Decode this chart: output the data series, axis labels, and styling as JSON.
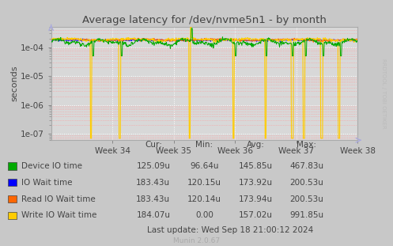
{
  "title": "Average latency for /dev/nvme5n1 - by month",
  "ylabel": "seconds",
  "xlabel_ticks": [
    "Week 34",
    "Week 35",
    "Week 36",
    "Week 37",
    "Week 38"
  ],
  "bg_color": "#c8c8c8",
  "plot_bg_color": "#d8d8d8",
  "legend": [
    {
      "label": "Device IO time",
      "color": "#00aa00"
    },
    {
      "label": "IO Wait time",
      "color": "#0000ff"
    },
    {
      "label": "Read IO Wait time",
      "color": "#ff6600"
    },
    {
      "label": "Write IO Wait time",
      "color": "#ffcc00"
    }
  ],
  "table_headers": [
    "Cur:",
    "Min:",
    "Avg:",
    "Max:"
  ],
  "table_data": [
    [
      "125.09u",
      "96.64u",
      "145.85u",
      "467.83u"
    ],
    [
      "183.43u",
      "120.15u",
      "173.92u",
      "200.53u"
    ],
    [
      "183.43u",
      "120.14u",
      "173.94u",
      "200.53u"
    ],
    [
      "184.07u",
      "0.00",
      "157.02u",
      "991.85u"
    ]
  ],
  "footer": "Munin 2.0.67",
  "watermark": "RRDTOOL / TOBI OETIKER",
  "num_points": 700,
  "ylim_min": 6e-08,
  "ylim_max": 0.0005
}
